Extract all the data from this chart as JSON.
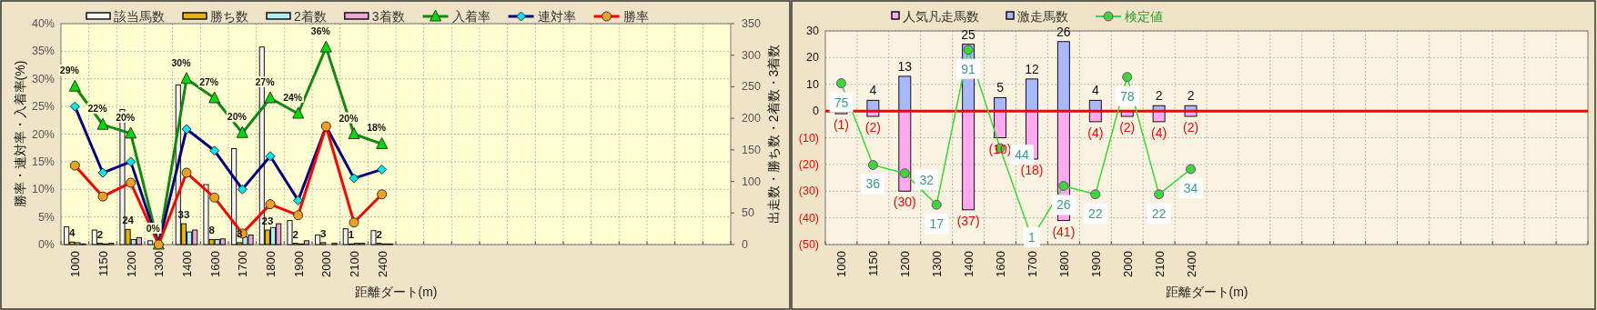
{
  "chart_data": [
    {
      "type": "bar",
      "xlabel": "距離ダート(m)",
      "ylabel": "勝率・連対率・入着率(%)",
      "y2label": "出走数・勝ち数・2着数・3着数",
      "categories": [
        "1000",
        "1150",
        "1200",
        "1300",
        "1400",
        "1600",
        "1700",
        "1800",
        "1900",
        "2000",
        "2100",
        "2400",
        null,
        null,
        null,
        null,
        null,
        null,
        null,
        null,
        null,
        null,
        null,
        null
      ],
      "ylim": [
        0,
        40
      ],
      "yticks": [
        {
          "value": 0,
          "label": "0%"
        },
        {
          "value": 5,
          "label": "5%"
        },
        {
          "value": 10,
          "label": "10%"
        },
        {
          "value": 15,
          "label": "15%"
        },
        {
          "value": 20,
          "label": "20%"
        },
        {
          "value": 25,
          "label": "25%"
        },
        {
          "value": 30,
          "label": "30%"
        },
        {
          "value": 35,
          "label": "35%"
        },
        {
          "value": 40,
          "label": "40%"
        }
      ],
      "y2lim": [
        0,
        350
      ],
      "y2ticks": [
        0,
        50,
        100,
        150,
        200,
        250,
        300,
        350
      ],
      "grid": true,
      "legend": "top",
      "series": [
        {
          "name": "該当馬数",
          "axis": "y2",
          "color": "#f4f4f4",
          "values": [
            28,
            23,
            214,
            6,
            253,
            95,
            152,
            313,
            38,
            15,
            25,
            22,
            null,
            null,
            null,
            null,
            null,
            null,
            null,
            null,
            null,
            null,
            null,
            null
          ]
        },
        {
          "name": "勝ち数",
          "axis": "y2",
          "color": "#e8b400",
          "values": [
            4,
            2,
            24,
            0,
            33,
            8,
            3,
            23,
            2,
            3,
            1,
            2,
            null,
            null,
            null,
            null,
            null,
            null,
            null,
            null,
            null,
            null,
            null,
            null
          ],
          "value_labels": [
            "4",
            "2",
            "24",
            null,
            "33",
            "8",
            "3",
            "23",
            "2",
            "3",
            "1",
            "2",
            null,
            null,
            null,
            null,
            null,
            null,
            null,
            null,
            null,
            null,
            null,
            null
          ]
        },
        {
          "name": "2着数",
          "axis": "y2",
          "color": "#b0eef2",
          "values": [
            3,
            1,
            8,
            0,
            20,
            8,
            12,
            27,
            1,
            0,
            2,
            1,
            null,
            null,
            null,
            null,
            null,
            null,
            null,
            null,
            null,
            null,
            null,
            null
          ]
        },
        {
          "name": "3着数",
          "axis": "y2",
          "color": "#f0a6d6",
          "values": [
            1,
            2,
            11,
            0,
            23,
            9,
            15,
            33,
            6,
            2,
            2,
            1,
            null,
            null,
            null,
            null,
            null,
            null,
            null,
            null,
            null,
            null,
            null,
            null
          ]
        },
        {
          "name": "入着率",
          "type": "line",
          "axis": "y",
          "color": "#118811",
          "marker": "triangle",
          "colors": [
            "#00dd00",
            "#00dd00",
            "#00dd00",
            "#00dd00",
            "#00dd00",
            "#00dd00",
            "#00dd00",
            "#00dd00",
            "#00dd00",
            "#00dd00",
            "#00dd00",
            "#00dd00",
            null,
            null,
            null,
            null,
            null,
            null,
            null,
            null,
            null,
            null,
            null,
            null
          ],
          "values": [
            28.6,
            21.7,
            20.1,
            0,
            30.0,
            26.5,
            20.2,
            26.5,
            23.7,
            35.7,
            20.0,
            18.2,
            null,
            null,
            null,
            null,
            null,
            null,
            null,
            null,
            null,
            null,
            null,
            null
          ],
          "value_labels": [
            "29%",
            "22%",
            "20%",
            "0%",
            "30%",
            "27%",
            "20%",
            "27%",
            "24%",
            "36%",
            "20%",
            "18%",
            null,
            null,
            null,
            null,
            null,
            null,
            null,
            null,
            null,
            null,
            null,
            null
          ]
        },
        {
          "name": "連対率",
          "type": "line",
          "axis": "y",
          "color": "#000080",
          "marker": "diamond",
          "colors": [
            "#00e8f0",
            "#00e8f0",
            "#00e8f0",
            "#00e8f0",
            "#00e8f0",
            "#00e8f0",
            "#00e8f0",
            "#00e8f0",
            "#00e8f0",
            "#00e8f0",
            "#00e8f0",
            "#00e8f0",
            null,
            null,
            null,
            null,
            null,
            null,
            null,
            null,
            null,
            null,
            null,
            null
          ],
          "values": [
            25,
            13,
            15,
            0,
            20.9,
            17,
            10,
            16,
            8,
            21.4,
            12,
            13.6,
            null,
            null,
            null,
            null,
            null,
            null,
            null,
            null,
            null,
            null,
            null,
            null
          ]
        },
        {
          "name": "勝率",
          "type": "line",
          "axis": "y",
          "color": "#ff0000",
          "marker": "circle",
          "colors": [
            "#f0a020",
            "#f0a020",
            "#f0a020",
            "#f0a020",
            "#f0a020",
            "#f0a020",
            "#f0a020",
            "#f0a020",
            "#f0a020",
            "#f0a020",
            "#f0a020",
            "#f0a020",
            null,
            null,
            null,
            null,
            null,
            null,
            null,
            null,
            null,
            null,
            null,
            null
          ],
          "values": [
            14.3,
            8.7,
            11.2,
            0,
            13,
            8.5,
            2,
            7.3,
            5.3,
            21.4,
            4,
            9.1,
            null,
            null,
            null,
            null,
            null,
            null,
            null,
            null,
            null,
            null,
            null,
            null
          ]
        }
      ]
    },
    {
      "type": "bar",
      "xlabel": "距離ダート(m)",
      "stacked": true,
      "categories": [
        "1000",
        "1150",
        "1200",
        "1300",
        "1400",
        "1600",
        "1700",
        "1800",
        "1900",
        "2000",
        "2100",
        "2400",
        null,
        null,
        null,
        null,
        null,
        null,
        null,
        null,
        null,
        null,
        null,
        null
      ],
      "ylim": [
        -50,
        30
      ],
      "yticks": [
        {
          "value": -50,
          "label": "(50)"
        },
        {
          "value": -40,
          "label": "(40)"
        },
        {
          "value": -30,
          "label": "(30)"
        },
        {
          "value": -20,
          "label": "(20)"
        },
        {
          "value": -10,
          "label": "(10)"
        },
        0,
        10,
        20,
        30
      ],
      "y2lim": [
        -2,
        100
      ],
      "grid": true,
      "legend": "top",
      "ref_lines": [
        {
          "axis": "y",
          "value": 0,
          "color": "#ff0000"
        }
      ],
      "series": [
        {
          "name": "人気凡走馬数",
          "color": "#ffaaf0",
          "values": [
            -1,
            -2,
            -30,
            null,
            -37,
            -10,
            -18,
            -41,
            -4,
            -2,
            -4,
            -2,
            null,
            null,
            null,
            null,
            null,
            null,
            null,
            null,
            null,
            null,
            null,
            null
          ],
          "value_labels": [
            "(1)",
            "(2)",
            "(30)",
            null,
            "(37)",
            "(10)",
            "(18)",
            "(41)",
            "(4)",
            "(2)",
            "(4)",
            "(2)",
            null,
            null,
            null,
            null,
            null,
            null,
            null,
            null,
            null,
            null,
            null,
            null
          ]
        },
        {
          "name": "激走馬数",
          "color": "#a8b8ff",
          "values": [
            0,
            4,
            13,
            null,
            25,
            5,
            12,
            26,
            4,
            0,
            2,
            2,
            null,
            null,
            null,
            null,
            null,
            null,
            null,
            null,
            null,
            null,
            null,
            null
          ],
          "value_labels": [
            null,
            "4",
            "13",
            null,
            "25",
            "5",
            "12",
            "26",
            "4",
            null,
            "2",
            "2",
            null,
            null,
            null,
            null,
            null,
            null,
            null,
            null,
            null,
            null,
            null,
            null
          ]
        },
        {
          "name": "検定値",
          "type": "line",
          "axis": "y2",
          "color": "#33dd33",
          "marker": "circle",
          "values": [
            75,
            36,
            32,
            17,
            91,
            44,
            1,
            26,
            22,
            78,
            22,
            34,
            null,
            null,
            null,
            null,
            null,
            null,
            null,
            null,
            null,
            null,
            null,
            null
          ],
          "value_labels": [
            "75",
            "36",
            "32",
            "17",
            "91",
            "44",
            "1",
            "26",
            "22",
            "78",
            "22",
            "34",
            null,
            null,
            null,
            null,
            null,
            null,
            null,
            null,
            null,
            null,
            null,
            null
          ]
        }
      ]
    }
  ]
}
